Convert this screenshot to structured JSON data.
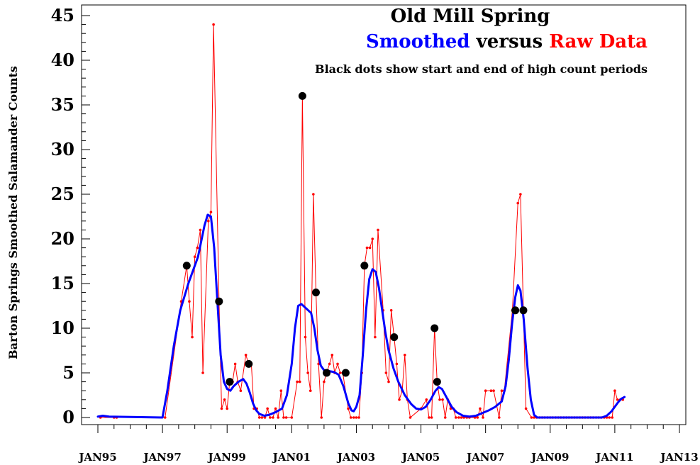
{
  "chart_data": {
    "type": "line",
    "title": "Old Mill Spring",
    "legend_text": {
      "smoothed": "Smoothed",
      "versus": "versus",
      "raw": "Raw Data"
    },
    "subtitle": "Black dots show start and end of high count periods",
    "ylabel": "Barton Springs Smoothed Salamander Counts",
    "xlabel": "",
    "ylim": [
      0,
      45
    ],
    "xlim": [
      1995.0,
      2013.0
    ],
    "y_ticks": [
      0,
      5,
      10,
      15,
      20,
      25,
      30,
      35,
      40,
      45
    ],
    "x_ticks": [
      {
        "value": 1995.0,
        "label": "JAN95"
      },
      {
        "value": 1997.0,
        "label": "JAN97"
      },
      {
        "value": 1999.0,
        "label": "JAN99"
      },
      {
        "value": 2001.0,
        "label": "JAN01"
      },
      {
        "value": 2003.0,
        "label": "JAN03"
      },
      {
        "value": 2005.0,
        "label": "JAN05"
      },
      {
        "value": 2007.0,
        "label": "JAN07"
      },
      {
        "value": 2009.0,
        "label": "JAN09"
      },
      {
        "value": 2011.0,
        "label": "JAN11"
      },
      {
        "value": 2013.0,
        "label": "JAN13"
      }
    ],
    "grid": false,
    "legend_position": "top-right",
    "colors": {
      "smoothed": "#0000ff",
      "raw": "#ff0000",
      "markers": "#000000",
      "axis": "#000000"
    },
    "series": [
      {
        "name": "Raw Data",
        "points": [
          [
            1995.08,
            0
          ],
          [
            1995.5,
            0
          ],
          [
            1995.58,
            0
          ],
          [
            1997.08,
            0
          ],
          [
            1997.58,
            13
          ],
          [
            1997.75,
            17
          ],
          [
            1997.83,
            13
          ],
          [
            1997.92,
            9
          ],
          [
            1998.0,
            18
          ],
          [
            1998.08,
            19
          ],
          [
            1998.17,
            21
          ],
          [
            1998.25,
            5
          ],
          [
            1998.42,
            22
          ],
          [
            1998.5,
            23
          ],
          [
            1998.58,
            44
          ],
          [
            1998.75,
            13
          ],
          [
            1998.83,
            1
          ],
          [
            1998.92,
            2
          ],
          [
            1999.0,
            1
          ],
          [
            1999.08,
            4
          ],
          [
            1999.17,
            4
          ],
          [
            1999.25,
            6
          ],
          [
            1999.33,
            4
          ],
          [
            1999.42,
            3
          ],
          [
            1999.58,
            7
          ],
          [
            1999.67,
            6
          ],
          [
            1999.75,
            6
          ],
          [
            1999.83,
            1
          ],
          [
            1999.92,
            1
          ],
          [
            2000.0,
            0
          ],
          [
            2000.08,
            0
          ],
          [
            2000.17,
            0
          ],
          [
            2000.25,
            1
          ],
          [
            2000.33,
            0
          ],
          [
            2000.42,
            0
          ],
          [
            2000.5,
            1
          ],
          [
            2000.58,
            0
          ],
          [
            2000.67,
            3
          ],
          [
            2000.75,
            0
          ],
          [
            2000.83,
            0
          ],
          [
            2001.0,
            0
          ],
          [
            2001.17,
            4
          ],
          [
            2001.25,
            4
          ],
          [
            2001.33,
            36
          ],
          [
            2001.42,
            9
          ],
          [
            2001.5,
            5
          ],
          [
            2001.58,
            3
          ],
          [
            2001.67,
            25
          ],
          [
            2001.75,
            14
          ],
          [
            2001.83,
            6
          ],
          [
            2001.92,
            0
          ],
          [
            2002.0,
            4
          ],
          [
            2002.08,
            5
          ],
          [
            2002.17,
            6
          ],
          [
            2002.25,
            7
          ],
          [
            2002.33,
            5
          ],
          [
            2002.42,
            6
          ],
          [
            2002.5,
            5
          ],
          [
            2002.58,
            5
          ],
          [
            2002.75,
            1
          ],
          [
            2002.83,
            0
          ],
          [
            2002.92,
            0
          ],
          [
            2003.0,
            0
          ],
          [
            2003.08,
            0
          ],
          [
            2003.17,
            5
          ],
          [
            2003.25,
            17
          ],
          [
            2003.33,
            19
          ],
          [
            2003.42,
            19
          ],
          [
            2003.5,
            20
          ],
          [
            2003.58,
            9
          ],
          [
            2003.67,
            21
          ],
          [
            2003.83,
            12
          ],
          [
            2003.92,
            5
          ],
          [
            2004.0,
            4
          ],
          [
            2004.08,
            12
          ],
          [
            2004.17,
            9
          ],
          [
            2004.25,
            6
          ],
          [
            2004.33,
            2
          ],
          [
            2004.42,
            3
          ],
          [
            2004.5,
            7
          ],
          [
            2004.58,
            2
          ],
          [
            2004.67,
            0
          ],
          [
            2005.0,
            1
          ],
          [
            2005.17,
            2
          ],
          [
            2005.25,
            0
          ],
          [
            2005.33,
            0
          ],
          [
            2005.42,
            10
          ],
          [
            2005.5,
            4
          ],
          [
            2005.58,
            2
          ],
          [
            2005.67,
            2
          ],
          [
            2005.75,
            0
          ],
          [
            2005.83,
            2
          ],
          [
            2005.92,
            1
          ],
          [
            2006.0,
            1
          ],
          [
            2006.08,
            0
          ],
          [
            2006.17,
            0
          ],
          [
            2006.25,
            0
          ],
          [
            2006.33,
            0
          ],
          [
            2006.42,
            0
          ],
          [
            2006.5,
            0
          ],
          [
            2006.67,
            0
          ],
          [
            2006.75,
            0
          ],
          [
            2006.83,
            1
          ],
          [
            2006.92,
            0
          ],
          [
            2007.0,
            3
          ],
          [
            2007.17,
            3
          ],
          [
            2007.25,
            3
          ],
          [
            2007.42,
            0
          ],
          [
            2007.5,
            3
          ],
          [
            2007.58,
            3
          ],
          [
            2007.83,
            12
          ],
          [
            2008.0,
            24
          ],
          [
            2008.08,
            25
          ],
          [
            2008.17,
            12
          ],
          [
            2008.25,
            1
          ],
          [
            2008.42,
            0
          ],
          [
            2008.5,
            0
          ],
          [
            2008.58,
            0
          ],
          [
            2008.67,
            0
          ],
          [
            2008.75,
            0
          ],
          [
            2008.83,
            0
          ],
          [
            2008.92,
            0
          ],
          [
            2009.0,
            0
          ],
          [
            2009.08,
            0
          ],
          [
            2009.17,
            0
          ],
          [
            2009.25,
            0
          ],
          [
            2009.33,
            0
          ],
          [
            2009.42,
            0
          ],
          [
            2009.5,
            0
          ],
          [
            2009.58,
            0
          ],
          [
            2009.67,
            0
          ],
          [
            2009.75,
            0
          ],
          [
            2009.83,
            0
          ],
          [
            2009.92,
            0
          ],
          [
            2010.0,
            0
          ],
          [
            2010.08,
            0
          ],
          [
            2010.17,
            0
          ],
          [
            2010.25,
            0
          ],
          [
            2010.33,
            0
          ],
          [
            2010.42,
            0
          ],
          [
            2010.5,
            0
          ],
          [
            2010.58,
            0
          ],
          [
            2010.67,
            0
          ],
          [
            2010.75,
            0
          ],
          [
            2010.83,
            0
          ],
          [
            2010.92,
            0
          ],
          [
            2011.0,
            3
          ],
          [
            2011.08,
            2
          ],
          [
            2011.17,
            2
          ],
          [
            2011.25,
            2
          ]
        ]
      },
      {
        "name": "Smoothed",
        "points": [
          [
            1995.0,
            0.1
          ],
          [
            1995.15,
            0.2
          ],
          [
            1995.35,
            0.1
          ],
          [
            1997.0,
            0
          ],
          [
            1997.15,
            3
          ],
          [
            1997.35,
            8
          ],
          [
            1997.55,
            12
          ],
          [
            1997.8,
            15
          ],
          [
            1998.1,
            18
          ],
          [
            1998.3,
            21.5
          ],
          [
            1998.4,
            22.7
          ],
          [
            1998.5,
            22.5
          ],
          [
            1998.6,
            19
          ],
          [
            1998.7,
            13
          ],
          [
            1998.8,
            7
          ],
          [
            1998.9,
            4
          ],
          [
            1999.0,
            3.2
          ],
          [
            1999.1,
            3
          ],
          [
            1999.2,
            3.5
          ],
          [
            1999.35,
            4
          ],
          [
            1999.5,
            4.3
          ],
          [
            1999.6,
            3.8
          ],
          [
            1999.7,
            2.8
          ],
          [
            1999.8,
            1.6
          ],
          [
            1999.9,
            0.8
          ],
          [
            2000.0,
            0.4
          ],
          [
            2000.15,
            0.2
          ],
          [
            2000.3,
            0.3
          ],
          [
            2000.5,
            0.6
          ],
          [
            2000.7,
            1.0
          ],
          [
            2000.85,
            2.5
          ],
          [
            2001.0,
            6
          ],
          [
            2001.1,
            10
          ],
          [
            2001.2,
            12.5
          ],
          [
            2001.3,
            12.7
          ],
          [
            2001.45,
            12.2
          ],
          [
            2001.6,
            11.7
          ],
          [
            2001.7,
            10
          ],
          [
            2001.8,
            7.5
          ],
          [
            2001.9,
            5.8
          ],
          [
            2002.0,
            5.3
          ],
          [
            2002.15,
            5.2
          ],
          [
            2002.3,
            5.1
          ],
          [
            2002.45,
            4.8
          ],
          [
            2002.6,
            3.5
          ],
          [
            2002.75,
            1.6
          ],
          [
            2002.85,
            0.8
          ],
          [
            2002.92,
            0.7
          ],
          [
            2003.0,
            1.2
          ],
          [
            2003.1,
            2.5
          ],
          [
            2003.2,
            7
          ],
          [
            2003.3,
            12
          ],
          [
            2003.4,
            15.5
          ],
          [
            2003.5,
            16.6
          ],
          [
            2003.6,
            16.3
          ],
          [
            2003.7,
            14.5
          ],
          [
            2003.8,
            12
          ],
          [
            2003.9,
            9.5
          ],
          [
            2004.0,
            7.5
          ],
          [
            2004.15,
            5.5
          ],
          [
            2004.3,
            4
          ],
          [
            2004.5,
            2.5
          ],
          [
            2004.7,
            1.5
          ],
          [
            2004.85,
            1.0
          ],
          [
            2005.0,
            0.9
          ],
          [
            2005.15,
            1.2
          ],
          [
            2005.3,
            2
          ],
          [
            2005.45,
            3
          ],
          [
            2005.55,
            3.4
          ],
          [
            2005.65,
            3.2
          ],
          [
            2005.8,
            2.2
          ],
          [
            2005.95,
            1.2
          ],
          [
            2006.1,
            0.6
          ],
          [
            2006.3,
            0.2
          ],
          [
            2006.5,
            0.1
          ],
          [
            2006.7,
            0.2
          ],
          [
            2006.9,
            0.5
          ],
          [
            2007.1,
            0.8
          ],
          [
            2007.3,
            1.2
          ],
          [
            2007.5,
            1.8
          ],
          [
            2007.62,
            3.5
          ],
          [
            2007.72,
            6.5
          ],
          [
            2007.82,
            10.5
          ],
          [
            2007.92,
            13.5
          ],
          [
            2008.0,
            14.8
          ],
          [
            2008.08,
            14.2
          ],
          [
            2008.18,
            11
          ],
          [
            2008.3,
            5.5
          ],
          [
            2008.4,
            2
          ],
          [
            2008.5,
            0.3
          ],
          [
            2008.6,
            0
          ],
          [
            2010.6,
            0
          ],
          [
            2010.75,
            0.2
          ],
          [
            2010.9,
            0.7
          ],
          [
            2011.0,
            1.2
          ],
          [
            2011.1,
            1.7
          ],
          [
            2011.2,
            2.1
          ],
          [
            2011.3,
            2.3
          ]
        ]
      },
      {
        "name": "high-count markers",
        "points": [
          [
            1997.75,
            17
          ],
          [
            1998.75,
            13
          ],
          [
            1999.08,
            4
          ],
          [
            1999.67,
            6
          ],
          [
            2001.33,
            36
          ],
          [
            2001.75,
            14
          ],
          [
            2002.08,
            5
          ],
          [
            2002.67,
            5
          ],
          [
            2003.25,
            17
          ],
          [
            2004.17,
            9
          ],
          [
            2005.42,
            10
          ],
          [
            2005.5,
            4
          ],
          [
            2007.92,
            12
          ],
          [
            2008.17,
            12
          ]
        ]
      }
    ]
  }
}
